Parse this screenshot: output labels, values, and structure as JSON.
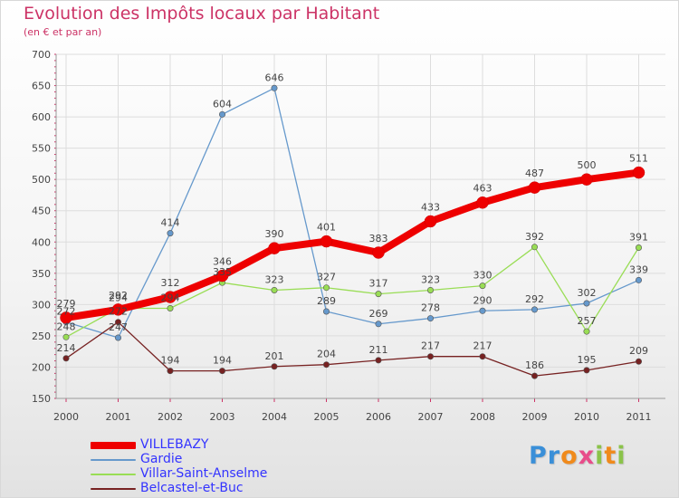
{
  "title": "Evolution des Impôts locaux par Habitant",
  "subtitle": "(en € et par an)",
  "logo": {
    "text": "Proxiti"
  },
  "chart_data": {
    "type": "line",
    "title": "Evolution des Impôts locaux par Habitant",
    "subtitle": "(en € et par an)",
    "xlabel": "",
    "ylabel": "",
    "x": [
      "2000",
      "2001",
      "2002",
      "2003",
      "2004",
      "2005",
      "2006",
      "2007",
      "2008",
      "2009",
      "2010",
      "2011"
    ],
    "ylim": [
      150,
      700
    ],
    "yticks": [
      150,
      200,
      250,
      300,
      350,
      400,
      450,
      500,
      550,
      600,
      650,
      700
    ],
    "grid": true,
    "legend_position": "bottom-left",
    "series": [
      {
        "name": "VILLEBAZY",
        "color": "#ee0000",
        "emphasis": true,
        "values": [
          279,
          292,
          312,
          346,
          390,
          401,
          383,
          433,
          463,
          487,
          500,
          511
        ]
      },
      {
        "name": "Gardie",
        "color": "#6699cc",
        "emphasis": false,
        "values": [
          272,
          247,
          414,
          604,
          646,
          289,
          269,
          278,
          290,
          292,
          302,
          339
        ]
      },
      {
        "name": "Villar-Saint-Anselme",
        "color": "#99dd55",
        "emphasis": false,
        "values": [
          248,
          294,
          294,
          335,
          323,
          327,
          317,
          323,
          330,
          392,
          257,
          391
        ]
      },
      {
        "name": "Belcastel-et-Buc",
        "color": "#772222",
        "emphasis": false,
        "values": [
          214,
          272,
          194,
          194,
          201,
          204,
          211,
          217,
          217,
          186,
          195,
          209
        ]
      }
    ]
  }
}
